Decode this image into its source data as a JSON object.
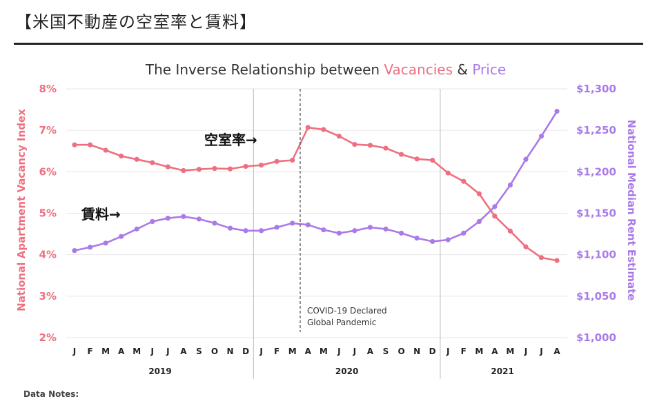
{
  "heading": "【米国不動産の空室率と賃料】",
  "callouts": {
    "vacancy": "空室率→",
    "rent": "賃料→"
  },
  "notes": "Data Notes:",
  "colors": {
    "vacancy": "#ee6f80",
    "rent": "#a97ae8",
    "grid": "#e6e6e6",
    "text": "#222222"
  },
  "chart_data": {
    "type": "line",
    "title_parts": [
      {
        "text": "The Inverse Relationship between ",
        "color": "#333333"
      },
      {
        "text": "Vacancies",
        "color": "#ee6f80"
      },
      {
        "text": " & ",
        "color": "#333333"
      },
      {
        "text": "Price",
        "color": "#a97ae8"
      }
    ],
    "ylabel_left": "National Apartment Vacancy Index",
    "ylabel_right": "National Median Rent Estimate",
    "ylim_left": [
      2,
      8
    ],
    "ylim_right": [
      1000,
      1300
    ],
    "left_ticks": [
      "2%",
      "3%",
      "4%",
      "5%",
      "6%",
      "7%",
      "8%"
    ],
    "right_ticks": [
      "$1,000",
      "$1,050",
      "$1,100",
      "$1,150",
      "$1,200",
      "$1,250",
      "$1,300"
    ],
    "x": [
      "J",
      "F",
      "M",
      "A",
      "M",
      "J",
      "J",
      "A",
      "S",
      "O",
      "N",
      "D",
      "J",
      "F",
      "M",
      "A",
      "M",
      "J",
      "J",
      "A",
      "S",
      "O",
      "N",
      "D",
      "J",
      "F",
      "M",
      "A",
      "M",
      "J",
      "J",
      "A"
    ],
    "years": [
      {
        "label": "2019",
        "start": 0,
        "end": 11
      },
      {
        "label": "2020",
        "start": 12,
        "end": 23
      },
      {
        "label": "2021",
        "start": 24,
        "end": 31
      }
    ],
    "annotation": {
      "lines": [
        "COVID-19 Declared",
        "Global Pandemic"
      ],
      "at_index": 14.5
    },
    "series": [
      {
        "name": "Vacancies",
        "axis": "left",
        "values": [
          6.65,
          6.65,
          6.52,
          6.38,
          6.3,
          6.22,
          6.12,
          6.03,
          6.06,
          6.08,
          6.07,
          6.13,
          6.16,
          6.25,
          6.28,
          7.07,
          7.02,
          6.86,
          6.66,
          6.64,
          6.57,
          6.42,
          6.31,
          6.28,
          5.97,
          5.77,
          5.47,
          4.93,
          4.57,
          4.19,
          3.93,
          3.86
        ]
      },
      {
        "name": "Price",
        "axis": "right",
        "values": [
          1105,
          1109,
          1114,
          1122,
          1131,
          1140,
          1144,
          1146,
          1143,
          1138,
          1132,
          1129,
          1129,
          1133,
          1138,
          1136,
          1130,
          1126,
          1129,
          1133,
          1131,
          1126,
          1120,
          1116,
          1118,
          1126,
          1140,
          1158,
          1184,
          1215,
          1243,
          1273
        ]
      }
    ]
  }
}
